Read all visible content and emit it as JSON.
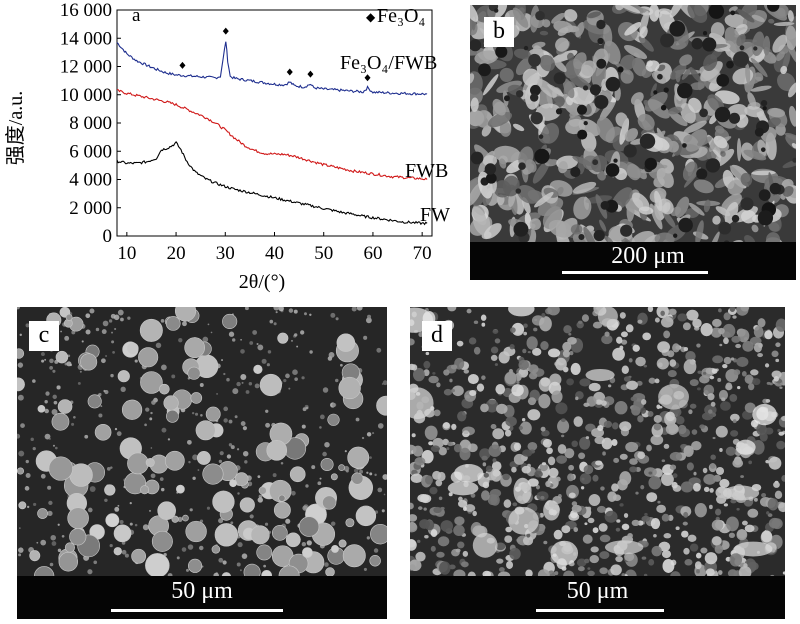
{
  "panel_a": {
    "label": "a",
    "ylabel": "强度/a.u.",
    "xlabel": "2θ/(°)",
    "legend_marker": "◆",
    "legend_label": "Fe₃O₄",
    "series_labels": {
      "top": "Fe₃O₄/FWB",
      "mid": "FWB",
      "bottom": "FW"
    },
    "y_ticks": [
      "16 000",
      "14 000",
      "12 000",
      "10 000",
      "8 000",
      "6 000",
      "4 000",
      "2 000",
      "0"
    ],
    "x_ticks": [
      "10",
      "20",
      "30",
      "40",
      "50",
      "60",
      "70"
    ]
  },
  "chart_data": {
    "type": "line",
    "xlabel": "2θ/(°)",
    "ylabel": "强度/a.u.",
    "xlim": [
      8,
      72
    ],
    "ylim": [
      0,
      16000
    ],
    "series": [
      {
        "name": "Fe₃O₄/FWB",
        "color": "#1f2f8f",
        "x": [
          8,
          10,
          12,
          14,
          16,
          18,
          20,
          22,
          24,
          26,
          28,
          29,
          29.6,
          30.1,
          30.5,
          31,
          32,
          34,
          36,
          38,
          40,
          42,
          43.1,
          44,
          46,
          47.3,
          48,
          50,
          52,
          54,
          56,
          58,
          58.9,
          60,
          62,
          64,
          66,
          68,
          70,
          71
        ],
        "values": [
          13700,
          12900,
          12400,
          12100,
          11800,
          11550,
          11400,
          11350,
          11300,
          11250,
          11200,
          11300,
          12600,
          13800,
          12400,
          11300,
          11150,
          11050,
          10950,
          10850,
          10750,
          10700,
          10900,
          10650,
          10550,
          10750,
          10500,
          10400,
          10350,
          10300,
          10250,
          10200,
          10500,
          10180,
          10150,
          10120,
          10100,
          10080,
          10060,
          10050
        ]
      },
      {
        "name": "FWB",
        "color": "#d01818",
        "x": [
          8,
          10,
          12,
          14,
          16,
          18,
          20,
          22,
          24,
          26,
          28,
          30,
          32,
          34,
          36,
          38,
          40,
          42,
          44,
          46,
          48,
          50,
          52,
          54,
          56,
          58,
          60,
          62,
          64,
          66,
          68,
          70,
          71
        ],
        "values": [
          10300,
          10100,
          9950,
          9800,
          9650,
          9500,
          9300,
          9000,
          8700,
          8400,
          8000,
          7500,
          6900,
          6400,
          6050,
          5850,
          5800,
          5780,
          5650,
          5450,
          5250,
          5050,
          4900,
          4750,
          4600,
          4500,
          4400,
          4300,
          4200,
          4150,
          4100,
          4050,
          4000
        ]
      },
      {
        "name": "FW",
        "color": "#000000",
        "x": [
          8,
          10,
          12,
          14,
          16,
          17,
          18,
          19,
          20,
          21,
          22,
          23,
          24,
          26,
          28,
          30,
          32,
          34,
          36,
          38,
          40,
          42,
          44,
          46,
          48,
          50,
          52,
          54,
          56,
          58,
          60,
          62,
          64,
          66,
          68,
          70,
          71
        ],
        "values": [
          5300,
          5150,
          5150,
          5250,
          5500,
          6100,
          6200,
          6350,
          6600,
          6100,
          5400,
          4900,
          4500,
          4050,
          3750,
          3500,
          3300,
          3150,
          3000,
          2850,
          2700,
          2550,
          2400,
          2250,
          2100,
          1950,
          1800,
          1650,
          1550,
          1400,
          1300,
          1200,
          1100,
          1000,
          950,
          900,
          900
        ]
      }
    ],
    "markers": {
      "symbol": "◆",
      "label": "Fe₃O₄",
      "x": [
        21.3,
        30.1,
        43.1,
        47.3,
        58.9
      ]
    }
  },
  "panel_b": {
    "label": "b",
    "scale": "200 μm"
  },
  "panel_c": {
    "label": "c",
    "scale": "50 μm"
  },
  "panel_d": {
    "label": "d",
    "scale": "50 μm"
  }
}
